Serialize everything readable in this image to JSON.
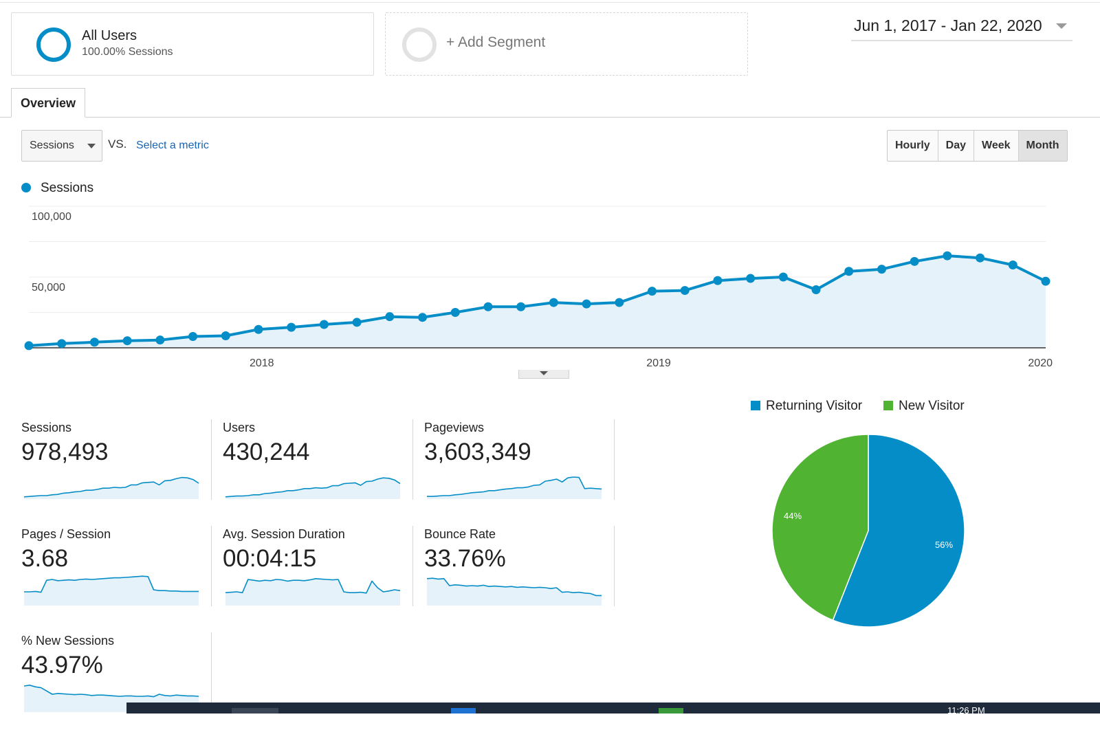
{
  "segments": {
    "all_users": {
      "title": "All Users",
      "subtitle": "100.00% Sessions"
    },
    "add_segment": {
      "label": "+ Add Segment"
    }
  },
  "date_range": "Jun 1, 2017 - Jan 22, 2020",
  "tabs": {
    "overview": "Overview"
  },
  "controls": {
    "metric": "Sessions",
    "vs": "VS.",
    "select_metric": "Select a metric",
    "granularity": [
      "Hourly",
      "Day",
      "Week",
      "Month"
    ],
    "active_granularity": "Month"
  },
  "legend": {
    "series": "Sessions"
  },
  "chart_data": [
    {
      "type": "area",
      "series": [
        {
          "name": "Sessions",
          "color": "#058dc7",
          "values": [
            1500,
            3000,
            4000,
            5000,
            5500,
            8000,
            8500,
            13000,
            14500,
            16500,
            18000,
            22000,
            21500,
            25000,
            29000,
            29000,
            32000,
            31000,
            32000,
            40000,
            40500,
            47500,
            49000,
            50000,
            41000,
            54000,
            55500,
            61000,
            65000,
            63500,
            58500,
            47000
          ]
        }
      ],
      "y_ticks": [
        "100,000",
        "50,000"
      ],
      "y_tick_values": [
        100000,
        50000
      ],
      "ylim": [
        0,
        100000
      ],
      "x_labels": [
        {
          "label": "2018",
          "index": 7.1
        },
        {
          "label": "2019",
          "index": 19.2
        },
        {
          "label": "2020",
          "index": 31
        }
      ],
      "grid": true
    },
    {
      "type": "pie",
      "legend": [
        "Returning Visitor",
        "New Visitor"
      ],
      "slices": [
        {
          "label": "Returning Visitor",
          "value": 56,
          "text": "56%",
          "color": "#058dc7"
        },
        {
          "label": "New Visitor",
          "value": 44,
          "text": "44%",
          "color": "#50b432"
        }
      ],
      "legend_position": "top"
    }
  ],
  "metrics": [
    {
      "label": "Sessions",
      "value": "978,493",
      "spark": [
        2,
        3,
        4,
        5,
        5,
        7,
        8,
        11,
        12,
        14,
        15,
        18,
        18,
        20,
        23,
        23,
        25,
        24,
        25,
        31,
        31,
        36,
        37,
        38,
        31,
        41,
        42,
        46,
        49,
        48,
        44,
        35
      ]
    },
    {
      "label": "Users",
      "value": "430,244",
      "spark": [
        2,
        3,
        4,
        4,
        5,
        7,
        7,
        10,
        11,
        13,
        14,
        17,
        17,
        19,
        22,
        22,
        24,
        23,
        24,
        29,
        29,
        34,
        35,
        36,
        30,
        39,
        40,
        45,
        48,
        47,
        43,
        34
      ]
    },
    {
      "label": "Pageviews",
      "value": "3,603,349",
      "spark": [
        3,
        3,
        4,
        5,
        5,
        7,
        8,
        10,
        12,
        13,
        14,
        17,
        17,
        19,
        21,
        22,
        24,
        24,
        26,
        30,
        31,
        40,
        42,
        45,
        38,
        48,
        50,
        49,
        22,
        23,
        22,
        21
      ]
    },
    {
      "label": "Pages / Session",
      "value": "3.68",
      "spark": [
        30,
        30,
        31,
        29,
        58,
        60,
        57,
        58,
        59,
        58,
        60,
        61,
        60,
        61,
        62,
        63,
        64,
        64,
        65,
        66,
        67,
        68,
        67,
        35,
        33,
        33,
        32,
        32,
        31,
        31,
        31,
        31
      ]
    },
    {
      "label": "Avg. Session Duration",
      "value": "00:04:15",
      "spark": [
        28,
        29,
        30,
        28,
        60,
        58,
        56,
        58,
        57,
        60,
        59,
        56,
        58,
        58,
        57,
        59,
        62,
        61,
        60,
        59,
        60,
        30,
        28,
        28,
        29,
        27,
        56,
        40,
        30,
        32,
        35,
        33
      ]
    },
    {
      "label": "Bounce Rate",
      "value": "33.76%",
      "spark": [
        62,
        63,
        61,
        62,
        45,
        47,
        46,
        44,
        45,
        44,
        46,
        43,
        44,
        43,
        42,
        43,
        41,
        42,
        41,
        40,
        41,
        40,
        38,
        40,
        29,
        30,
        28,
        29,
        27,
        26,
        21,
        21
      ]
    },
    {
      "label": "% New Sessions",
      "value": "43.97%",
      "spark": [
        60,
        62,
        58,
        56,
        48,
        40,
        42,
        41,
        40,
        39,
        40,
        39,
        37,
        38,
        38,
        37,
        36,
        35,
        36,
        36,
        35,
        35,
        36,
        34,
        40,
        37,
        36,
        38,
        37,
        36,
        36,
        35
      ]
    }
  ],
  "taskbar": {
    "clock": "11:26 PM"
  }
}
